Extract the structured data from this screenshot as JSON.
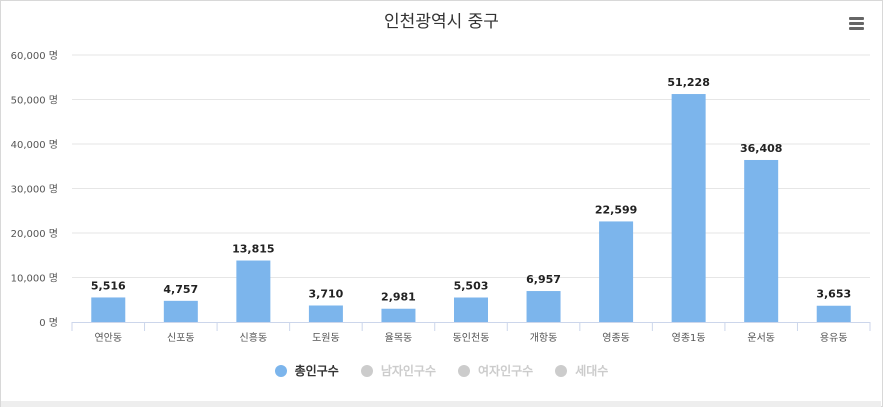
{
  "chart_data": {
    "type": "bar",
    "title": "인천광역시 중구",
    "categories": [
      "연안동",
      "신포동",
      "신흥동",
      "도원동",
      "율목동",
      "동인천동",
      "개항동",
      "영종동",
      "영종1동",
      "운서동",
      "용유동"
    ],
    "series": [
      {
        "name": "총인구수",
        "values": [
          5516,
          4757,
          13815,
          3710,
          2981,
          5503,
          6957,
          22599,
          51228,
          36408,
          3653
        ],
        "color": "#7cb5ec",
        "visible": true
      },
      {
        "name": "남자인구수",
        "visible": false,
        "color": "#cccccc"
      },
      {
        "name": "여자인구수",
        "visible": false,
        "color": "#cccccc"
      },
      {
        "name": "세대수",
        "visible": false,
        "color": "#cccccc"
      }
    ],
    "data_labels": [
      "5,516",
      "4,757",
      "13,815",
      "3,710",
      "2,981",
      "5,503",
      "6,957",
      "22,599",
      "51,228",
      "36,408",
      "3,653"
    ],
    "y_ticks": [
      "0 명",
      "10,000 명",
      "20,000 명",
      "30,000 명",
      "40,000 명",
      "50,000 명",
      "60,000 명"
    ],
    "ylim": [
      0,
      60000
    ],
    "grid": true,
    "legend_position": "bottom-center"
  },
  "menu_icon": "hamburger-menu-icon"
}
